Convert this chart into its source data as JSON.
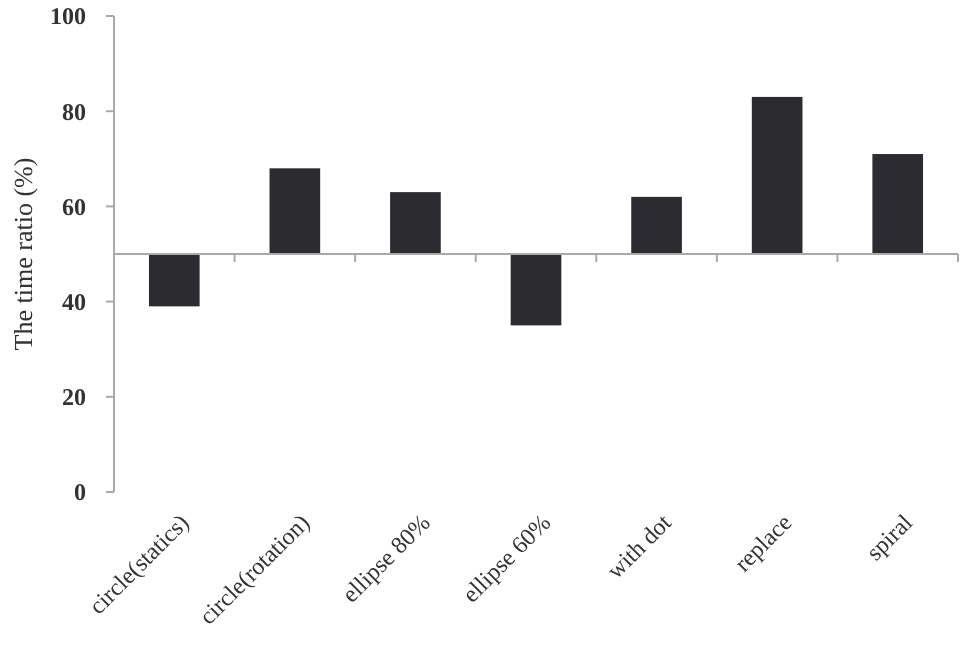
{
  "chart_data": {
    "type": "bar",
    "ylabel": "The time ratio (%)",
    "categories": [
      "circle(statics)",
      "circle(rotation)",
      "ellipse 80%",
      "ellipse 60%",
      "with dot",
      "replace",
      "spiral"
    ],
    "values": [
      -11,
      18,
      13,
      -15,
      12,
      33,
      21
    ],
    "base": [
      50,
      50,
      50,
      50,
      50,
      50,
      50
    ],
    "color": "#2b2b30",
    "ref_lines": [
      {
        "axis": "y",
        "value": 50,
        "color": "#aaaaaa"
      }
    ],
    "ylim": [
      0,
      100
    ],
    "yticks": [
      0,
      20,
      40,
      60,
      80,
      100
    ],
    "grid": false
  }
}
